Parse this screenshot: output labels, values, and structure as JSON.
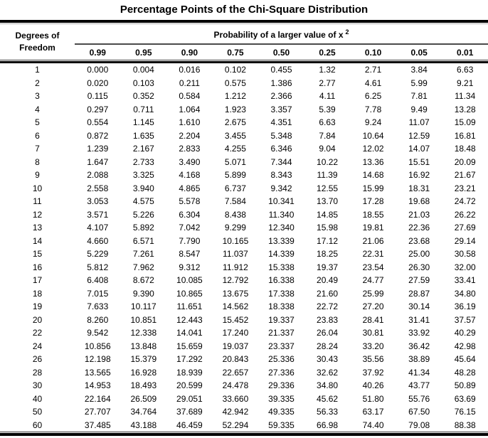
{
  "title": "Percentage Points of the Chi-Square Distribution",
  "table": {
    "corner_header": {
      "line1": "Degrees of",
      "line2": "Freedom"
    },
    "span_header": {
      "text": "Probability of a larger value of x",
      "superscript": "2"
    },
    "columns": [
      "0.99",
      "0.95",
      "0.90",
      "0.75",
      "0.50",
      "0.25",
      "0.10",
      "0.05",
      "0.01"
    ],
    "rows": [
      [
        "1",
        "0.000",
        "0.004",
        "0.016",
        "0.102",
        "0.455",
        "1.32",
        "2.71",
        "3.84",
        "6.63"
      ],
      [
        "2",
        "0.020",
        "0.103",
        "0.211",
        "0.575",
        "1.386",
        "2.77",
        "4.61",
        "5.99",
        "9.21"
      ],
      [
        "3",
        "0.115",
        "0.352",
        "0.584",
        "1.212",
        "2.366",
        "4.11",
        "6.25",
        "7.81",
        "11.34"
      ],
      [
        "4",
        "0.297",
        "0.711",
        "1.064",
        "1.923",
        "3.357",
        "5.39",
        "7.78",
        "9.49",
        "13.28"
      ],
      [
        "5",
        "0.554",
        "1.145",
        "1.610",
        "2.675",
        "4.351",
        "6.63",
        "9.24",
        "11.07",
        "15.09"
      ],
      [
        "6",
        "0.872",
        "1.635",
        "2.204",
        "3.455",
        "5.348",
        "7.84",
        "10.64",
        "12.59",
        "16.81"
      ],
      [
        "7",
        "1.239",
        "2.167",
        "2.833",
        "4.255",
        "6.346",
        "9.04",
        "12.02",
        "14.07",
        "18.48"
      ],
      [
        "8",
        "1.647",
        "2.733",
        "3.490",
        "5.071",
        "7.344",
        "10.22",
        "13.36",
        "15.51",
        "20.09"
      ],
      [
        "9",
        "2.088",
        "3.325",
        "4.168",
        "5.899",
        "8.343",
        "11.39",
        "14.68",
        "16.92",
        "21.67"
      ],
      [
        "10",
        "2.558",
        "3.940",
        "4.865",
        "6.737",
        "9.342",
        "12.55",
        "15.99",
        "18.31",
        "23.21"
      ],
      [
        "11",
        "3.053",
        "4.575",
        "5.578",
        "7.584",
        "10.341",
        "13.70",
        "17.28",
        "19.68",
        "24.72"
      ],
      [
        "12",
        "3.571",
        "5.226",
        "6.304",
        "8.438",
        "11.340",
        "14.85",
        "18.55",
        "21.03",
        "26.22"
      ],
      [
        "13",
        "4.107",
        "5.892",
        "7.042",
        "9.299",
        "12.340",
        "15.98",
        "19.81",
        "22.36",
        "27.69"
      ],
      [
        "14",
        "4.660",
        "6.571",
        "7.790",
        "10.165",
        "13.339",
        "17.12",
        "21.06",
        "23.68",
        "29.14"
      ],
      [
        "15",
        "5.229",
        "7.261",
        "8.547",
        "11.037",
        "14.339",
        "18.25",
        "22.31",
        "25.00",
        "30.58"
      ],
      [
        "16",
        "5.812",
        "7.962",
        "9.312",
        "11.912",
        "15.338",
        "19.37",
        "23.54",
        "26.30",
        "32.00"
      ],
      [
        "17",
        "6.408",
        "8.672",
        "10.085",
        "12.792",
        "16.338",
        "20.49",
        "24.77",
        "27.59",
        "33.41"
      ],
      [
        "18",
        "7.015",
        "9.390",
        "10.865",
        "13.675",
        "17.338",
        "21.60",
        "25.99",
        "28.87",
        "34.80"
      ],
      [
        "19",
        "7.633",
        "10.117",
        "11.651",
        "14.562",
        "18.338",
        "22.72",
        "27.20",
        "30.14",
        "36.19"
      ],
      [
        "20",
        "8.260",
        "10.851",
        "12.443",
        "15.452",
        "19.337",
        "23.83",
        "28.41",
        "31.41",
        "37.57"
      ],
      [
        "22",
        "9.542",
        "12.338",
        "14.041",
        "17.240",
        "21.337",
        "26.04",
        "30.81",
        "33.92",
        "40.29"
      ],
      [
        "24",
        "10.856",
        "13.848",
        "15.659",
        "19.037",
        "23.337",
        "28.24",
        "33.20",
        "36.42",
        "42.98"
      ],
      [
        "26",
        "12.198",
        "15.379",
        "17.292",
        "20.843",
        "25.336",
        "30.43",
        "35.56",
        "38.89",
        "45.64"
      ],
      [
        "28",
        "13.565",
        "16.928",
        "18.939",
        "22.657",
        "27.336",
        "32.62",
        "37.92",
        "41.34",
        "48.28"
      ],
      [
        "30",
        "14.953",
        "18.493",
        "20.599",
        "24.478",
        "29.336",
        "34.80",
        "40.26",
        "43.77",
        "50.89"
      ],
      [
        "40",
        "22.164",
        "26.509",
        "29.051",
        "33.660",
        "39.335",
        "45.62",
        "51.80",
        "55.76",
        "63.69"
      ],
      [
        "50",
        "27.707",
        "34.764",
        "37.689",
        "42.942",
        "49.335",
        "56.33",
        "63.17",
        "67.50",
        "76.15"
      ],
      [
        "60",
        "37.485",
        "43.188",
        "46.459",
        "52.294",
        "59.335",
        "66.98",
        "74.40",
        "79.08",
        "88.38"
      ]
    ]
  },
  "colors": {
    "text": "#000000",
    "background": "#ffffff",
    "rule": "#000000",
    "subrule": "#4a4a4a"
  }
}
